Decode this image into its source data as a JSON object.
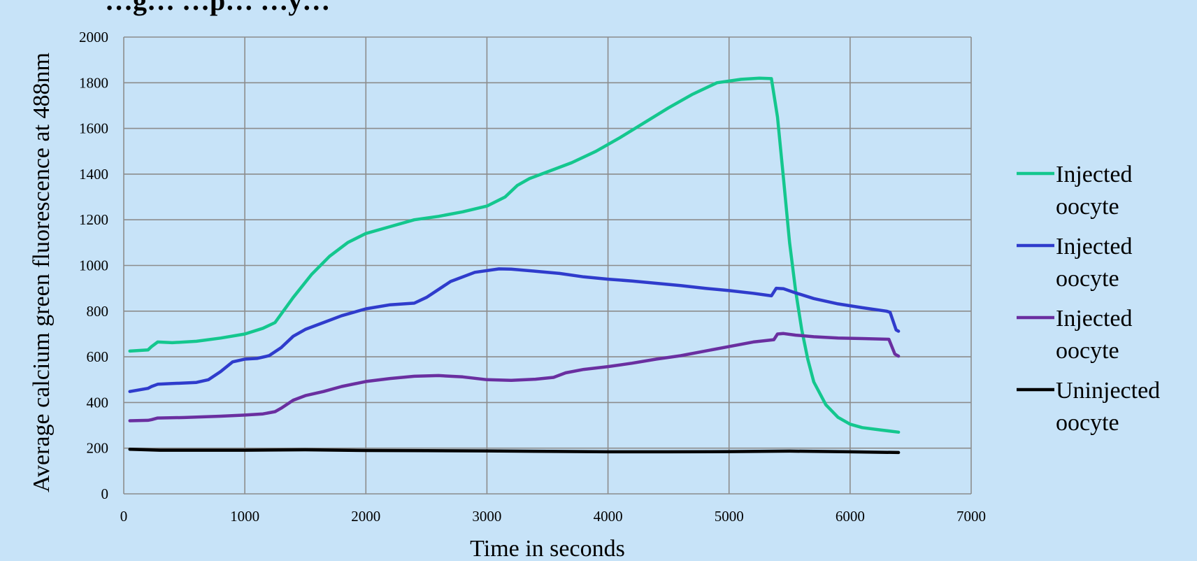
{
  "chart_data": {
    "type": "line",
    "title": "…g… …p… …y…",
    "xlabel": "Time in seconds",
    "ylabel": "Average calcium green fluorescence at 488nm",
    "xlim": [
      0,
      7000
    ],
    "ylim": [
      0,
      2000
    ],
    "xticks": [
      0,
      1000,
      2000,
      3000,
      4000,
      5000,
      6000,
      7000
    ],
    "yticks": [
      0,
      200,
      400,
      600,
      800,
      1000,
      1200,
      1400,
      1600,
      1800,
      2000
    ],
    "grid": true,
    "legend_position": "right",
    "series": [
      {
        "name": "Injected oocyte",
        "color": "#14c78e",
        "points": [
          [
            50,
            625
          ],
          [
            200,
            630
          ],
          [
            230,
            645
          ],
          [
            280,
            665
          ],
          [
            400,
            662
          ],
          [
            600,
            668
          ],
          [
            800,
            682
          ],
          [
            1000,
            700
          ],
          [
            1150,
            725
          ],
          [
            1250,
            750
          ],
          [
            1400,
            860
          ],
          [
            1550,
            960
          ],
          [
            1700,
            1040
          ],
          [
            1850,
            1100
          ],
          [
            2000,
            1140
          ],
          [
            2200,
            1170
          ],
          [
            2400,
            1200
          ],
          [
            2600,
            1215
          ],
          [
            2800,
            1235
          ],
          [
            3000,
            1260
          ],
          [
            3150,
            1300
          ],
          [
            3250,
            1350
          ],
          [
            3350,
            1380
          ],
          [
            3500,
            1410
          ],
          [
            3700,
            1450
          ],
          [
            3900,
            1500
          ],
          [
            4100,
            1560
          ],
          [
            4300,
            1625
          ],
          [
            4500,
            1690
          ],
          [
            4700,
            1750
          ],
          [
            4900,
            1800
          ],
          [
            5100,
            1815
          ],
          [
            5250,
            1820
          ],
          [
            5350,
            1818
          ],
          [
            5400,
            1650
          ],
          [
            5450,
            1380
          ],
          [
            5500,
            1100
          ],
          [
            5550,
            890
          ],
          [
            5600,
            720
          ],
          [
            5650,
            590
          ],
          [
            5700,
            490
          ],
          [
            5800,
            390
          ],
          [
            5900,
            335
          ],
          [
            6000,
            305
          ],
          [
            6100,
            290
          ],
          [
            6250,
            280
          ],
          [
            6400,
            270
          ]
        ]
      },
      {
        "name": "Injected oocyte",
        "color": "#2f3ccc",
        "points": [
          [
            50,
            448
          ],
          [
            200,
            462
          ],
          [
            230,
            470
          ],
          [
            280,
            480
          ],
          [
            400,
            483
          ],
          [
            600,
            488
          ],
          [
            700,
            500
          ],
          [
            800,
            535
          ],
          [
            900,
            578
          ],
          [
            1000,
            590
          ],
          [
            1100,
            593
          ],
          [
            1200,
            605
          ],
          [
            1300,
            640
          ],
          [
            1400,
            690
          ],
          [
            1500,
            720
          ],
          [
            1650,
            750
          ],
          [
            1800,
            780
          ],
          [
            2000,
            810
          ],
          [
            2200,
            828
          ],
          [
            2400,
            835
          ],
          [
            2500,
            860
          ],
          [
            2700,
            930
          ],
          [
            2900,
            970
          ],
          [
            3100,
            985
          ],
          [
            3200,
            984
          ],
          [
            3400,
            975
          ],
          [
            3600,
            965
          ],
          [
            3800,
            950
          ],
          [
            4000,
            940
          ],
          [
            4200,
            932
          ],
          [
            4400,
            922
          ],
          [
            4600,
            912
          ],
          [
            4800,
            900
          ],
          [
            5000,
            890
          ],
          [
            5200,
            878
          ],
          [
            5350,
            867
          ],
          [
            5390,
            900
          ],
          [
            5450,
            898
          ],
          [
            5550,
            880
          ],
          [
            5700,
            855
          ],
          [
            5900,
            832
          ],
          [
            6100,
            815
          ],
          [
            6300,
            800
          ],
          [
            6330,
            795
          ],
          [
            6380,
            718
          ],
          [
            6400,
            712
          ]
        ]
      },
      {
        "name": "Injected oocyte",
        "color": "#6a2fa0",
        "points": [
          [
            50,
            320
          ],
          [
            200,
            322
          ],
          [
            230,
            325
          ],
          [
            280,
            332
          ],
          [
            500,
            334
          ],
          [
            800,
            340
          ],
          [
            1000,
            345
          ],
          [
            1150,
            350
          ],
          [
            1250,
            360
          ],
          [
            1300,
            375
          ],
          [
            1400,
            410
          ],
          [
            1500,
            430
          ],
          [
            1650,
            448
          ],
          [
            1800,
            470
          ],
          [
            2000,
            492
          ],
          [
            2200,
            505
          ],
          [
            2400,
            515
          ],
          [
            2600,
            518
          ],
          [
            2800,
            512
          ],
          [
            3000,
            500
          ],
          [
            3200,
            497
          ],
          [
            3400,
            502
          ],
          [
            3550,
            510
          ],
          [
            3650,
            530
          ],
          [
            3800,
            545
          ],
          [
            4000,
            557
          ],
          [
            4200,
            572
          ],
          [
            4400,
            590
          ],
          [
            4600,
            605
          ],
          [
            4800,
            625
          ],
          [
            5000,
            645
          ],
          [
            5200,
            665
          ],
          [
            5370,
            675
          ],
          [
            5400,
            700
          ],
          [
            5450,
            702
          ],
          [
            5550,
            695
          ],
          [
            5700,
            688
          ],
          [
            5900,
            682
          ],
          [
            6100,
            680
          ],
          [
            6320,
            677
          ],
          [
            6370,
            612
          ],
          [
            6400,
            603
          ]
        ]
      },
      {
        "name": "Uninjected oocyte",
        "color": "#000000",
        "points": [
          [
            50,
            195
          ],
          [
            300,
            191
          ],
          [
            600,
            191
          ],
          [
            1000,
            191
          ],
          [
            1500,
            193
          ],
          [
            2000,
            190
          ],
          [
            2500,
            189
          ],
          [
            3000,
            188
          ],
          [
            3500,
            186
          ],
          [
            4000,
            184
          ],
          [
            4500,
            184
          ],
          [
            5000,
            185
          ],
          [
            5500,
            187
          ],
          [
            6000,
            184
          ],
          [
            6400,
            181
          ]
        ]
      }
    ]
  }
}
